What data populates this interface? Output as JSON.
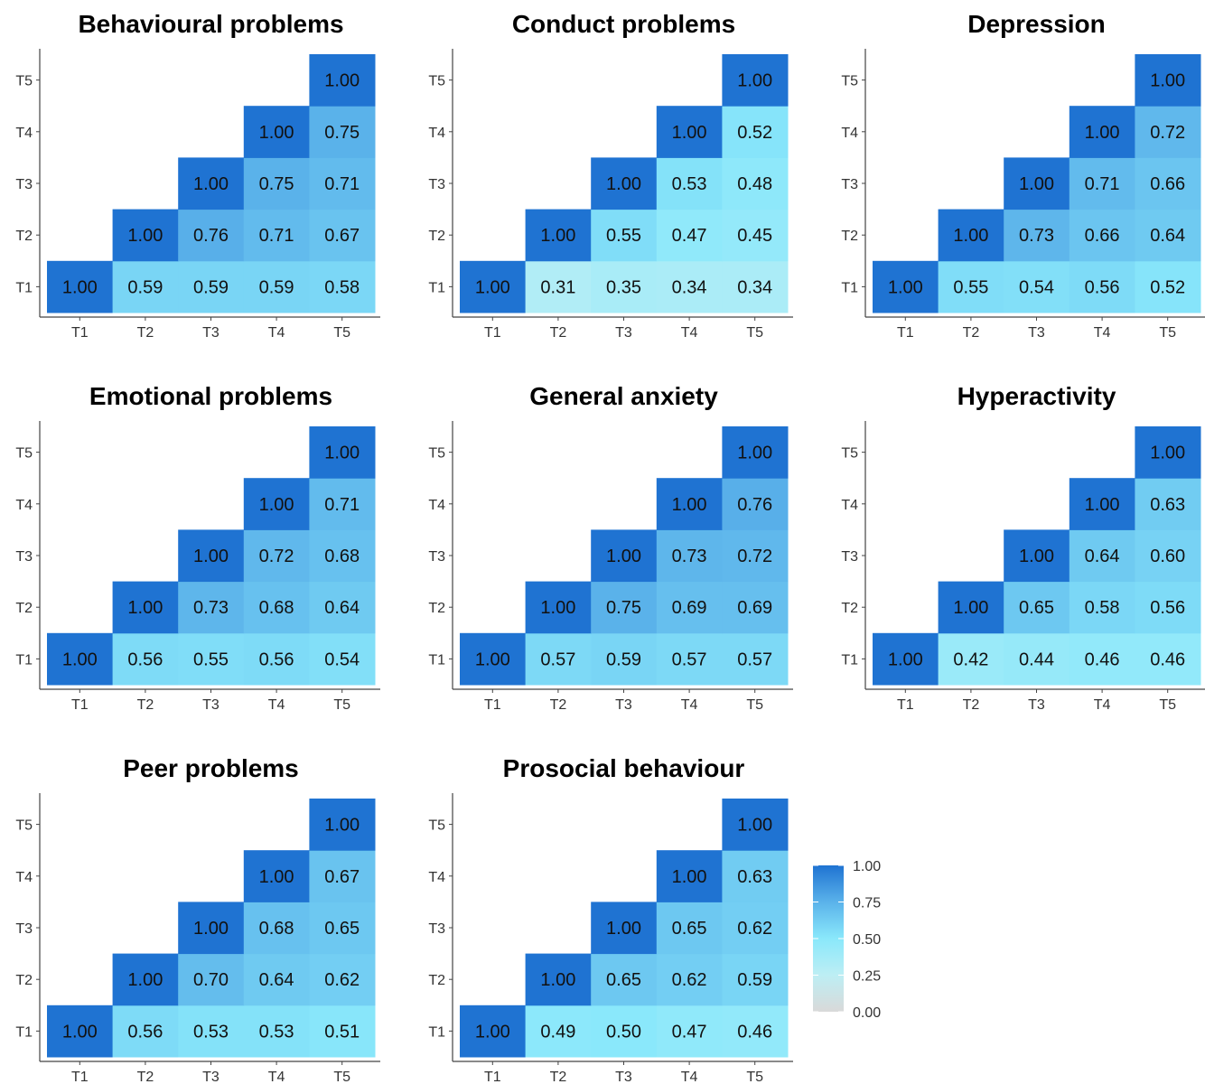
{
  "chart_data": [
    {
      "type": "heatmap",
      "title": "Behavioural problems",
      "x_categories": [
        "T1",
        "T2",
        "T3",
        "T4",
        "T5"
      ],
      "y_categories": [
        "T1",
        "T2",
        "T3",
        "T4",
        "T5"
      ],
      "values": [
        [
          1.0,
          0.59,
          0.59,
          0.59,
          0.58
        ],
        [
          null,
          1.0,
          0.76,
          0.71,
          0.67
        ],
        [
          null,
          null,
          1.0,
          0.75,
          0.71
        ],
        [
          null,
          null,
          null,
          1.0,
          0.75
        ],
        [
          null,
          null,
          null,
          null,
          1.0
        ]
      ]
    },
    {
      "type": "heatmap",
      "title": "Conduct problems",
      "x_categories": [
        "T1",
        "T2",
        "T3",
        "T4",
        "T5"
      ],
      "y_categories": [
        "T1",
        "T2",
        "T3",
        "T4",
        "T5"
      ],
      "values": [
        [
          1.0,
          0.31,
          0.35,
          0.34,
          0.34
        ],
        [
          null,
          1.0,
          0.55,
          0.47,
          0.45
        ],
        [
          null,
          null,
          1.0,
          0.53,
          0.48
        ],
        [
          null,
          null,
          null,
          1.0,
          0.52
        ],
        [
          null,
          null,
          null,
          null,
          1.0
        ]
      ]
    },
    {
      "type": "heatmap",
      "title": "Depression",
      "x_categories": [
        "T1",
        "T2",
        "T3",
        "T4",
        "T5"
      ],
      "y_categories": [
        "T1",
        "T2",
        "T3",
        "T4",
        "T5"
      ],
      "values": [
        [
          1.0,
          0.55,
          0.54,
          0.56,
          0.52
        ],
        [
          null,
          1.0,
          0.73,
          0.66,
          0.64
        ],
        [
          null,
          null,
          1.0,
          0.71,
          0.66
        ],
        [
          null,
          null,
          null,
          1.0,
          0.72
        ],
        [
          null,
          null,
          null,
          null,
          1.0
        ]
      ]
    },
    {
      "type": "heatmap",
      "title": "Emotional problems",
      "x_categories": [
        "T1",
        "T2",
        "T3",
        "T4",
        "T5"
      ],
      "y_categories": [
        "T1",
        "T2",
        "T3",
        "T4",
        "T5"
      ],
      "values": [
        [
          1.0,
          0.56,
          0.55,
          0.56,
          0.54
        ],
        [
          null,
          1.0,
          0.73,
          0.68,
          0.64
        ],
        [
          null,
          null,
          1.0,
          0.72,
          0.68
        ],
        [
          null,
          null,
          null,
          1.0,
          0.71
        ],
        [
          null,
          null,
          null,
          null,
          1.0
        ]
      ]
    },
    {
      "type": "heatmap",
      "title": "General anxiety",
      "x_categories": [
        "T1",
        "T2",
        "T3",
        "T4",
        "T5"
      ],
      "y_categories": [
        "T1",
        "T2",
        "T3",
        "T4",
        "T5"
      ],
      "values": [
        [
          1.0,
          0.57,
          0.59,
          0.57,
          0.57
        ],
        [
          null,
          1.0,
          0.75,
          0.69,
          0.69
        ],
        [
          null,
          null,
          1.0,
          0.73,
          0.72
        ],
        [
          null,
          null,
          null,
          1.0,
          0.76
        ],
        [
          null,
          null,
          null,
          null,
          1.0
        ]
      ]
    },
    {
      "type": "heatmap",
      "title": "Hyperactivity",
      "x_categories": [
        "T1",
        "T2",
        "T3",
        "T4",
        "T5"
      ],
      "y_categories": [
        "T1",
        "T2",
        "T3",
        "T4",
        "T5"
      ],
      "values": [
        [
          1.0,
          0.42,
          0.44,
          0.46,
          0.46
        ],
        [
          null,
          1.0,
          0.65,
          0.58,
          0.56
        ],
        [
          null,
          null,
          1.0,
          0.64,
          0.6
        ],
        [
          null,
          null,
          null,
          1.0,
          0.63
        ],
        [
          null,
          null,
          null,
          null,
          1.0
        ]
      ]
    },
    {
      "type": "heatmap",
      "title": "Peer problems",
      "x_categories": [
        "T1",
        "T2",
        "T3",
        "T4",
        "T5"
      ],
      "y_categories": [
        "T1",
        "T2",
        "T3",
        "T4",
        "T5"
      ],
      "values": [
        [
          1.0,
          0.56,
          0.53,
          0.53,
          0.51
        ],
        [
          null,
          1.0,
          0.7,
          0.64,
          0.62
        ],
        [
          null,
          null,
          1.0,
          0.68,
          0.65
        ],
        [
          null,
          null,
          null,
          1.0,
          0.67
        ],
        [
          null,
          null,
          null,
          null,
          1.0
        ]
      ]
    },
    {
      "type": "heatmap",
      "title": "Prosocial behaviour",
      "x_categories": [
        "T1",
        "T2",
        "T3",
        "T4",
        "T5"
      ],
      "y_categories": [
        "T1",
        "T2",
        "T3",
        "T4",
        "T5"
      ],
      "values": [
        [
          1.0,
          0.49,
          0.5,
          0.47,
          0.46
        ],
        [
          null,
          1.0,
          0.65,
          0.62,
          0.59
        ],
        [
          null,
          null,
          1.0,
          0.65,
          0.62
        ],
        [
          null,
          null,
          null,
          1.0,
          0.63
        ],
        [
          null,
          null,
          null,
          null,
          1.0
        ]
      ]
    }
  ],
  "legend": {
    "ticks": [
      "1.00",
      "0.75",
      "0.50",
      "0.25",
      "0.00"
    ],
    "range": [
      0,
      1
    ],
    "colors": {
      "0.00": "#d9d9d9",
      "0.25": "#bdeef4",
      "0.50": "#8ae8fb",
      "0.75": "#5ab2ea",
      "1.00": "#1f73d2"
    }
  }
}
